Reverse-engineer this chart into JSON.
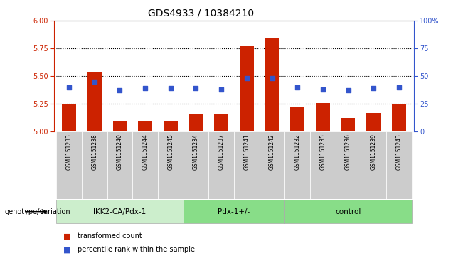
{
  "title": "GDS4933 / 10384210",
  "samples": [
    "GSM1151233",
    "GSM1151238",
    "GSM1151240",
    "GSM1151244",
    "GSM1151245",
    "GSM1151234",
    "GSM1151237",
    "GSM1151241",
    "GSM1151242",
    "GSM1151232",
    "GSM1151235",
    "GSM1151236",
    "GSM1151239",
    "GSM1151243"
  ],
  "bar_values": [
    5.25,
    5.53,
    5.1,
    5.1,
    5.1,
    5.16,
    5.16,
    5.77,
    5.84,
    5.22,
    5.26,
    5.12,
    5.17,
    5.25
  ],
  "bar_base": 5.0,
  "blue_values": [
    40,
    45,
    37,
    39,
    39,
    39,
    38,
    48,
    48,
    40,
    38,
    37,
    39,
    40
  ],
  "ylim_left": [
    5.0,
    6.0
  ],
  "ylim_right": [
    0,
    100
  ],
  "yticks_left": [
    5.0,
    5.25,
    5.5,
    5.75,
    6.0
  ],
  "yticks_right": [
    0,
    25,
    50,
    75,
    100
  ],
  "hlines": [
    5.25,
    5.5,
    5.75
  ],
  "bar_color": "#cc2200",
  "blue_color": "#3355cc",
  "bar_width": 0.55,
  "legend_red": "transformed count",
  "legend_blue": "percentile rank within the sample",
  "group_label": "genotype/variation",
  "group_labels": [
    "IKK2-CA/Pdx-1",
    "Pdx-1+/-",
    "control"
  ],
  "group_ranges": [
    [
      0,
      4
    ],
    [
      5,
      8
    ],
    [
      9,
      13
    ]
  ],
  "group_color_light": "#cceecc",
  "group_color_dark": "#88dd88",
  "sample_bg_color": "#cccccc",
  "title_fontsize": 10,
  "tick_fontsize": 7,
  "label_fontsize": 7.5
}
